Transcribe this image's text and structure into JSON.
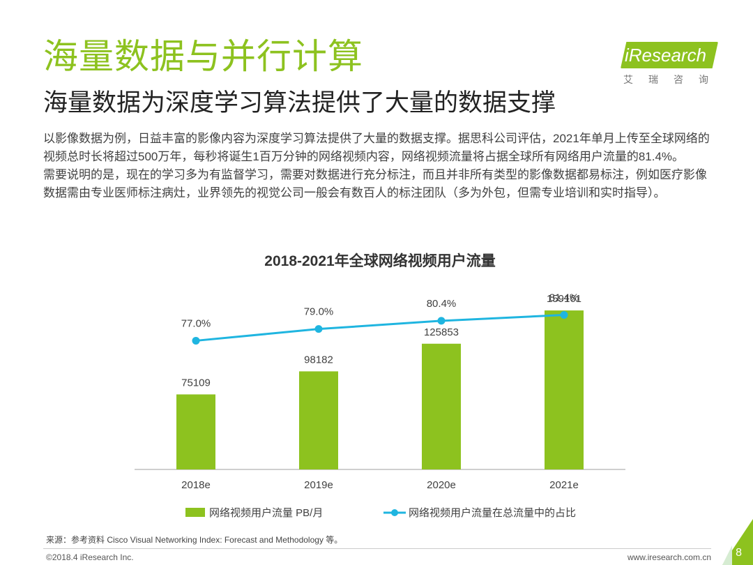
{
  "header": {
    "title": "海量数据与并行计算",
    "subtitle": "海量数据为深度学习算法提供了大量的数据支撑"
  },
  "logo": {
    "brand": "iResearch",
    "cn": "艾瑞咨询"
  },
  "body": {
    "para1": "以影像数据为例，日益丰富的影像内容为深度学习算法提供了大量的数据支撑。据思科公司评估，2021年单月上传至全球网络的视频总时长将超过500万年，每秒将诞生1百万分钟的网络视频内容，网络视频流量将占据全球所有网络用户流量的81.4%。",
    "para2": "需要说明的是，现在的学习多为有监督学习，需要对数据进行充分标注，而且并非所有类型的影像数据都易标注，例如医疗影像数据需由专业医师标注病灶，业界领先的视觉公司一般会有数百人的标注团队（多为外包，但需专业培训和实时指导）。"
  },
  "chart_data": {
    "type": "bar",
    "title": "2018-2021年全球网络视频用户流量",
    "categories": [
      "2018e",
      "2019e",
      "2020e",
      "2021e"
    ],
    "series": [
      {
        "name": "网络视频用户流量 PB/月",
        "kind": "bar",
        "values": [
          75109,
          98182,
          125853,
          159161
        ],
        "labels": [
          "75109",
          "98182",
          "125853",
          "159161"
        ],
        "color": "#8dc21f"
      },
      {
        "name": "网络视频用户流量在总流量中的占比",
        "kind": "line",
        "values": [
          77.0,
          79.0,
          80.4,
          81.4
        ],
        "labels": [
          "77.0%",
          "79.0%",
          "80.4%",
          "81.4%"
        ],
        "color": "#1fb5e0"
      }
    ],
    "ylim_bar": [
      0,
      330000
    ],
    "ylim_line": [
      55,
      83
    ],
    "legend": "bottom"
  },
  "footer": {
    "source": "来源：参考资料 Cisco Visual Networking Index: Forecast and Methodology 等。",
    "copyright": "©2018.4 iResearch Inc.",
    "website": "www.iresearch.com.cn",
    "page": "8"
  },
  "colors": {
    "accent": "#8dc21f",
    "line": "#1fb5e0"
  }
}
